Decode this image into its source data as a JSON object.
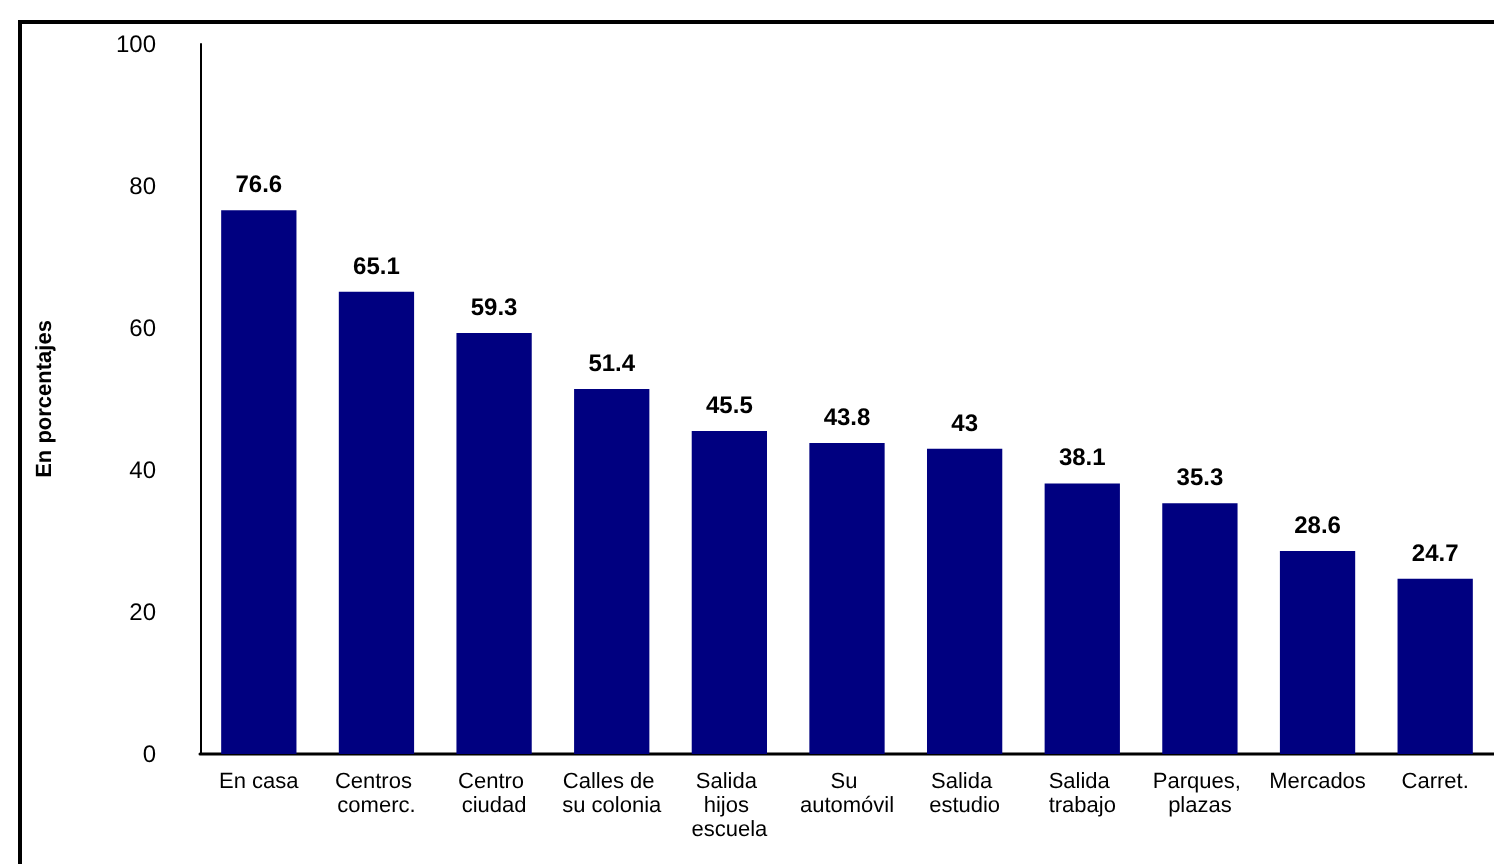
{
  "chart_data": {
    "type": "bar",
    "ylabel": "En porcentajes",
    "categories": [
      "En casa",
      "Centros comerc.",
      "Centro ciudad",
      "Calles de su colonia",
      "Salida hijos escuela",
      "Su automóvil",
      "Salida estudio",
      "Salida trabajo",
      "Parques, plazas",
      "Mercados",
      "Carret."
    ],
    "values": [
      76.6,
      65.1,
      59.3,
      51.4,
      45.5,
      43.8,
      43,
      38.1,
      35.3,
      28.6,
      24.7
    ],
    "color": "#000080",
    "ylim": [
      0,
      100
    ],
    "yticks": [
      0,
      20,
      40,
      60,
      80,
      100
    ],
    "data_labels": true
  }
}
